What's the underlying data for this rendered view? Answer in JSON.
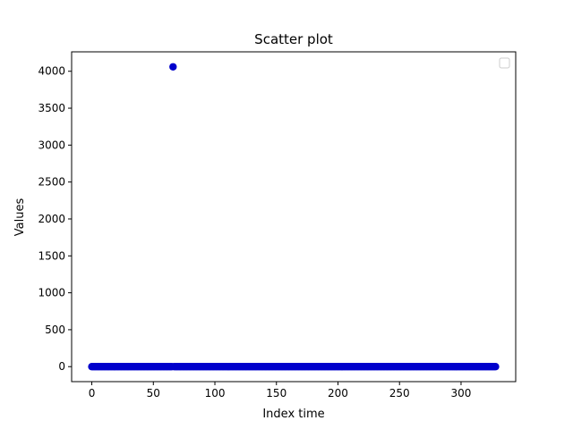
{
  "chart_data": {
    "type": "scatter",
    "title": "Scatter plot",
    "xlabel": "Index time",
    "ylabel": "Values",
    "xlim": [
      -16.4,
      344.4
    ],
    "ylim": [
      -203,
      4263
    ],
    "x_ticks": [
      0,
      50,
      100,
      150,
      200,
      250,
      300
    ],
    "y_ticks": [
      0,
      500,
      1000,
      1500,
      2000,
      2500,
      3000,
      3500,
      4000
    ],
    "grid": false,
    "legend": "top-right",
    "marker_color": "#0000cc",
    "series": [
      {
        "x_start": 0,
        "x_end": 328,
        "baseline_value": 0,
        "outliers": [
          {
            "x": 66,
            "y": 4060
          }
        ]
      }
    ]
  }
}
